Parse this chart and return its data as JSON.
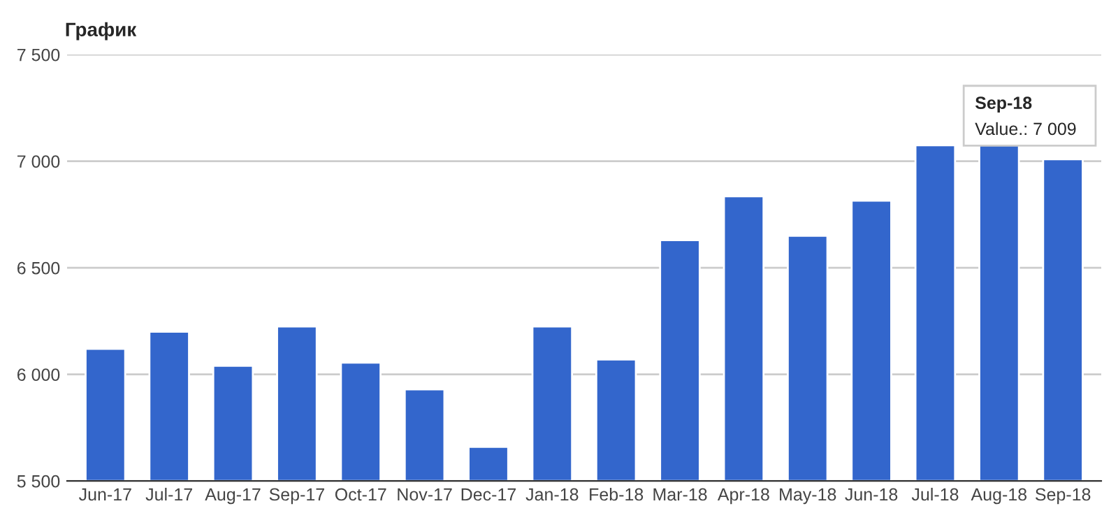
{
  "chart_data": {
    "type": "bar",
    "title": "График",
    "categories": [
      "Jun-17",
      "Jul-17",
      "Aug-17",
      "Sep-17",
      "Oct-17",
      "Nov-17",
      "Dec-17",
      "Jan-18",
      "Feb-18",
      "Mar-18",
      "Apr-18",
      "May-18",
      "Jun-18",
      "Jul-18",
      "Aug-18",
      "Sep-18"
    ],
    "values": [
      6120,
      6200,
      6040,
      6225,
      6055,
      5930,
      5660,
      6225,
      6070,
      6630,
      6835,
      6650,
      6815,
      7075,
      7080,
      7009
    ],
    "color": "#3366cc",
    "ylim": [
      5500,
      7500
    ],
    "yticks": [
      {
        "value": 5500,
        "label": "5 500"
      },
      {
        "value": 6000,
        "label": "6 000"
      },
      {
        "value": 6500,
        "label": "6 500"
      },
      {
        "value": 7000,
        "label": "7 000"
      },
      {
        "value": 7500,
        "label": "7 500"
      }
    ],
    "grid": "y",
    "legend": false,
    "annotations": [
      "Sep-18",
      "Value.: 7 009"
    ]
  }
}
